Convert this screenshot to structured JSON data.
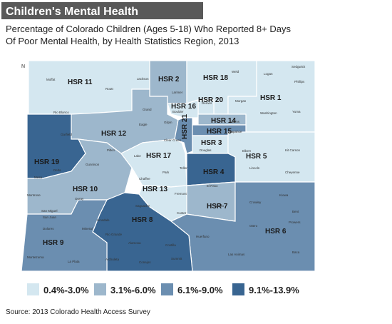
{
  "header": {
    "title": "Children's Mental Health",
    "subtitle": [
      "Percentage of Colorado Children (Ages 5-18) Who Reported 8+ Days",
      "Of Poor Mental Health, by Health Statistics Region, 2013"
    ]
  },
  "map": {
    "north": "N",
    "regions": [
      {
        "label": "HSR 11",
        "level": 0
      },
      {
        "label": "HSR 2",
        "level": 1
      },
      {
        "label": "HSR 18",
        "level": 0
      },
      {
        "label": "HSR 1",
        "level": 0
      },
      {
        "label": "HSR 20",
        "level": 0
      },
      {
        "label": "HSR 16",
        "level": 0
      },
      {
        "label": "HSR 12",
        "level": 1
      },
      {
        "label": "HSR 19",
        "level": 3
      },
      {
        "label": "HSR 10",
        "level": 1
      },
      {
        "label": "HSR 17",
        "level": 0
      },
      {
        "label": "HSR 21",
        "level": 2
      },
      {
        "label": "HSR 14",
        "level": 1
      },
      {
        "label": "HSR 15",
        "level": 2
      },
      {
        "label": "HSR 3",
        "level": 0
      },
      {
        "label": "HSR 5",
        "level": 0
      },
      {
        "label": "HSR 4",
        "level": 3
      },
      {
        "label": "HSR 13",
        "level": 0
      },
      {
        "label": "HSR 7",
        "level": 1
      },
      {
        "label": "HSR 6",
        "level": 2
      },
      {
        "label": "HSR 8",
        "level": 3
      },
      {
        "label": "HSR 9",
        "level": 2
      }
    ],
    "counties": [
      "Moffat",
      "Routt",
      "Jackson",
      "Larimer",
      "Weld",
      "Logan",
      "Sedgwick",
      "Phillips",
      "Morgan",
      "Washington",
      "Yuma",
      "Boulder",
      "Denver",
      "Rio Blanco",
      "Grand",
      "Garfield",
      "Eagle",
      "Clear Creek",
      "Gilpin",
      "Pitkin",
      "Adams",
      "Arapahoe",
      "Douglas",
      "Elbert",
      "Kit Carson",
      "Lincoln",
      "Cheyenne",
      "Mesa",
      "Delta",
      "Gunnison",
      "Lake",
      "Park",
      "Teller",
      "Chaffee",
      "El Paso",
      "Fremont",
      "Kiowa",
      "Crowley",
      "Pueblo",
      "Custer",
      "Montrose",
      "Ouray",
      "Hinsdale",
      "Saguache",
      "San Miguel",
      "Otero",
      "Prowers",
      "Bent",
      "Huerfano",
      "Dolores",
      "San Juan",
      "Mineral",
      "Rio Grande",
      "Alamosa",
      "Costilla",
      "Las Animas",
      "Baca",
      "Montezuma",
      "La Plata",
      "Archuleta",
      "Conejos",
      "Summit"
    ]
  },
  "legend": {
    "items": [
      {
        "label": "0.4%-3.0%",
        "color": "#d4e7f0"
      },
      {
        "label": "3.1%-6.0%",
        "color": "#9db7cc"
      },
      {
        "label": "6.1%-9.0%",
        "color": "#6b8eb0"
      },
      {
        "label": "9.1%-13.9%",
        "color": "#396591"
      }
    ]
  },
  "footer": {
    "source": "Source: 2013 Colorado Health Access Survey"
  }
}
